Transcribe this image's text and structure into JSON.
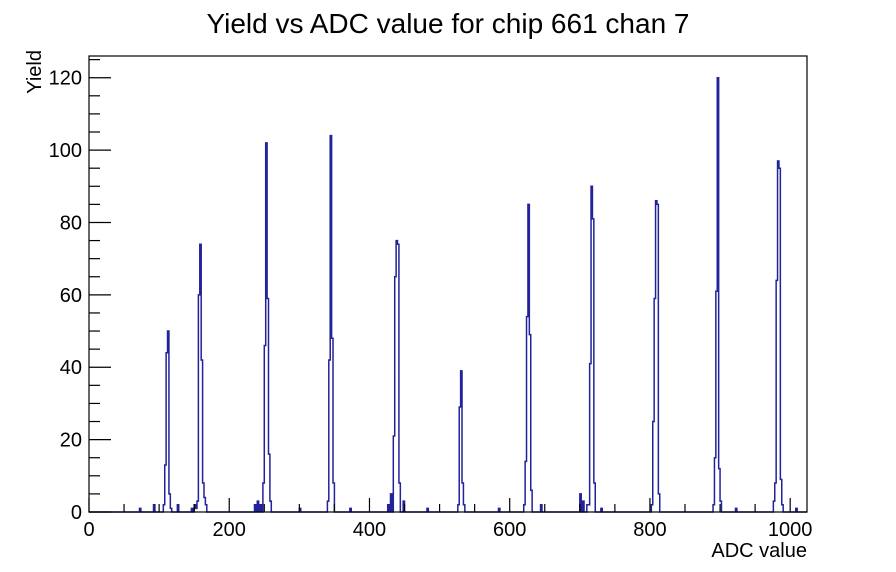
{
  "title": "Yield vs ADC value for chip 661 chan 7",
  "colors": {
    "hist_line": "#22229a",
    "axis": "#000000",
    "background": "#ffffff"
  },
  "chart_data": {
    "type": "bar",
    "title": "Yield vs ADC value for chip 661 chan 7",
    "xlabel": "ADC value",
    "ylabel": "Yield",
    "xlim": [
      0,
      1024
    ],
    "ylim": [
      0,
      126
    ],
    "grid": false,
    "legend": false,
    "x_major_ticks": [
      0,
      200,
      400,
      600,
      800,
      1000
    ],
    "x_minor_step": 50,
    "y_major_ticks": [
      0,
      20,
      40,
      60,
      80,
      100,
      120
    ],
    "y_minor_step": 5,
    "bin_width": 2,
    "peak_summary": [
      {
        "adc": 112,
        "yield": 50
      },
      {
        "adc": 158,
        "yield": 74
      },
      {
        "adc": 252,
        "yield": 102
      },
      {
        "adc": 344,
        "yield": 104
      },
      {
        "adc": 438,
        "yield": 75
      },
      {
        "adc": 530,
        "yield": 39
      },
      {
        "adc": 626,
        "yield": 85
      },
      {
        "adc": 716,
        "yield": 90
      },
      {
        "adc": 808,
        "yield": 86
      },
      {
        "adc": 896,
        "yield": 120
      },
      {
        "adc": 982,
        "yield": 97
      }
    ],
    "bins": [
      [
        73,
        1
      ],
      [
        93,
        2
      ],
      [
        106,
        2
      ],
      [
        108,
        13
      ],
      [
        110,
        44
      ],
      [
        112,
        50
      ],
      [
        114,
        5
      ],
      [
        116,
        1
      ],
      [
        126,
        2
      ],
      [
        146,
        1
      ],
      [
        150,
        2
      ],
      [
        152,
        1
      ],
      [
        154,
        3
      ],
      [
        156,
        60
      ],
      [
        158,
        74
      ],
      [
        160,
        42
      ],
      [
        162,
        8
      ],
      [
        164,
        4
      ],
      [
        166,
        2
      ],
      [
        236,
        2
      ],
      [
        240,
        3
      ],
      [
        244,
        2
      ],
      [
        248,
        8
      ],
      [
        250,
        46
      ],
      [
        252,
        102
      ],
      [
        254,
        59
      ],
      [
        256,
        16
      ],
      [
        258,
        3
      ],
      [
        300,
        1
      ],
      [
        340,
        3
      ],
      [
        342,
        42
      ],
      [
        344,
        104
      ],
      [
        346,
        48
      ],
      [
        348,
        8
      ],
      [
        372,
        1
      ],
      [
        426,
        2
      ],
      [
        430,
        5
      ],
      [
        434,
        21
      ],
      [
        436,
        65
      ],
      [
        438,
        75
      ],
      [
        440,
        74
      ],
      [
        442,
        8
      ],
      [
        448,
        3
      ],
      [
        482,
        1
      ],
      [
        526,
        2
      ],
      [
        528,
        29
      ],
      [
        530,
        39
      ],
      [
        532,
        8
      ],
      [
        534,
        2
      ],
      [
        584,
        1
      ],
      [
        620,
        2
      ],
      [
        622,
        14
      ],
      [
        624,
        54
      ],
      [
        626,
        85
      ],
      [
        628,
        49
      ],
      [
        630,
        6
      ],
      [
        644,
        2
      ],
      [
        700,
        5
      ],
      [
        704,
        3
      ],
      [
        710,
        2
      ],
      [
        712,
        2
      ],
      [
        714,
        41
      ],
      [
        716,
        90
      ],
      [
        718,
        81
      ],
      [
        720,
        8
      ],
      [
        730,
        1
      ],
      [
        802,
        2
      ],
      [
        804,
        25
      ],
      [
        806,
        59
      ],
      [
        808,
        86
      ],
      [
        810,
        85
      ],
      [
        812,
        5
      ],
      [
        890,
        2
      ],
      [
        892,
        15
      ],
      [
        894,
        61
      ],
      [
        896,
        120
      ],
      [
        898,
        12
      ],
      [
        900,
        3
      ],
      [
        922,
        1
      ],
      [
        976,
        3
      ],
      [
        978,
        8
      ],
      [
        980,
        64
      ],
      [
        982,
        97
      ],
      [
        984,
        95
      ],
      [
        986,
        9
      ],
      [
        988,
        2
      ],
      [
        1008,
        1
      ]
    ]
  }
}
